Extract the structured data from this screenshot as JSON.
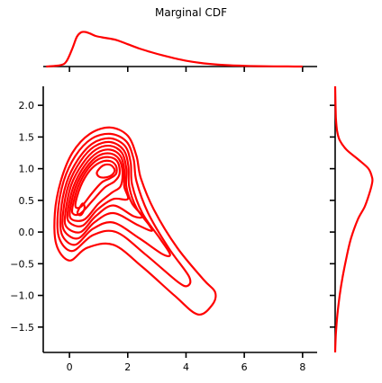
{
  "chart_data": {
    "type": "contour",
    "title": "Marginal CDF",
    "xlabel": "",
    "ylabel": "",
    "grid": false,
    "color": "#ff0000",
    "xlim": [
      -0.9,
      8.5
    ],
    "ylim": [
      -1.9,
      2.3
    ],
    "xticks": [
      0,
      2,
      4,
      6,
      8
    ],
    "xtick_labels": [
      "0",
      "2",
      "4",
      "6",
      "8"
    ],
    "yticks": [
      -1.5,
      -1.0,
      -0.5,
      0.0,
      0.5,
      1.0,
      1.5,
      2.0
    ],
    "ytick_labels": [
      "−1.5",
      "−1.0",
      "−0.5",
      "0.0",
      "0.5",
      "1.0",
      "1.5",
      "2.0"
    ],
    "joint_kde": {
      "center_x": 1.4,
      "center_y": 0.85,
      "levels": [
        [
          [
            -0.5,
            0.3
          ],
          [
            -0.3,
            0.8
          ],
          [
            0.1,
            1.25
          ],
          [
            0.7,
            1.55
          ],
          [
            1.4,
            1.65
          ],
          [
            2.0,
            1.52
          ],
          [
            2.3,
            1.2
          ],
          [
            2.45,
            0.85
          ],
          [
            2.9,
            0.35
          ],
          [
            3.7,
            -0.25
          ],
          [
            4.6,
            -0.75
          ],
          [
            5.0,
            -0.95
          ],
          [
            4.9,
            -1.15
          ],
          [
            4.4,
            -1.3
          ],
          [
            3.6,
            -1.0
          ],
          [
            2.5,
            -0.55
          ],
          [
            1.5,
            -0.2
          ],
          [
            0.6,
            -0.25
          ],
          [
            0.0,
            -0.45
          ],
          [
            -0.45,
            -0.2
          ]
        ],
        [
          [
            -0.4,
            0.3
          ],
          [
            -0.2,
            0.8
          ],
          [
            0.2,
            1.2
          ],
          [
            0.75,
            1.47
          ],
          [
            1.4,
            1.55
          ],
          [
            1.95,
            1.43
          ],
          [
            2.2,
            1.15
          ],
          [
            2.3,
            0.8
          ],
          [
            2.7,
            0.3
          ],
          [
            3.4,
            -0.25
          ],
          [
            4.1,
            -0.7
          ],
          [
            4.05,
            -0.85
          ],
          [
            3.7,
            -0.78
          ],
          [
            2.6,
            -0.35
          ],
          [
            1.6,
            0.0
          ],
          [
            0.8,
            -0.05
          ],
          [
            0.1,
            -0.3
          ],
          [
            -0.35,
            -0.1
          ]
        ],
        [
          [
            -0.3,
            0.3
          ],
          [
            -0.1,
            0.78
          ],
          [
            0.3,
            1.15
          ],
          [
            0.8,
            1.4
          ],
          [
            1.4,
            1.48
          ],
          [
            1.9,
            1.36
          ],
          [
            2.1,
            1.1
          ],
          [
            2.15,
            0.75
          ],
          [
            2.5,
            0.3
          ],
          [
            3.1,
            -0.1
          ],
          [
            3.45,
            -0.35
          ],
          [
            3.2,
            -0.35
          ],
          [
            2.4,
            -0.1
          ],
          [
            1.5,
            0.15
          ],
          [
            0.8,
            0.05
          ],
          [
            0.2,
            -0.2
          ],
          [
            -0.25,
            -0.05
          ]
        ],
        [
          [
            -0.22,
            0.3
          ],
          [
            -0.02,
            0.76
          ],
          [
            0.38,
            1.12
          ],
          [
            0.85,
            1.35
          ],
          [
            1.4,
            1.42
          ],
          [
            1.85,
            1.3
          ],
          [
            2.02,
            1.05
          ],
          [
            2.05,
            0.72
          ],
          [
            2.3,
            0.38
          ],
          [
            2.75,
            0.1
          ],
          [
            2.8,
            0.02
          ],
          [
            2.3,
            0.12
          ],
          [
            1.5,
            0.3
          ],
          [
            0.85,
            0.15
          ],
          [
            0.3,
            -0.1
          ],
          [
            -0.18,
            0.02
          ]
        ],
        [
          [
            -0.14,
            0.3
          ],
          [
            0.06,
            0.74
          ],
          [
            0.45,
            1.08
          ],
          [
            0.9,
            1.3
          ],
          [
            1.4,
            1.36
          ],
          [
            1.8,
            1.25
          ],
          [
            1.95,
            1.0
          ],
          [
            1.95,
            0.72
          ],
          [
            2.15,
            0.45
          ],
          [
            2.5,
            0.25
          ],
          [
            2.2,
            0.25
          ],
          [
            1.5,
            0.42
          ],
          [
            0.9,
            0.25
          ],
          [
            0.38,
            0.0
          ],
          [
            -0.1,
            0.08
          ]
        ],
        [
          [
            -0.06,
            0.32
          ],
          [
            0.14,
            0.72
          ],
          [
            0.52,
            1.05
          ],
          [
            0.95,
            1.25
          ],
          [
            1.4,
            1.3
          ],
          [
            1.75,
            1.2
          ],
          [
            1.88,
            0.98
          ],
          [
            1.88,
            0.72
          ],
          [
            2.0,
            0.52
          ],
          [
            1.5,
            0.52
          ],
          [
            0.95,
            0.35
          ],
          [
            0.45,
            0.1
          ],
          [
            0.0,
            0.15
          ]
        ],
        [
          [
            0.02,
            0.35
          ],
          [
            0.22,
            0.72
          ],
          [
            0.58,
            1.02
          ],
          [
            0.98,
            1.2
          ],
          [
            1.4,
            1.24
          ],
          [
            1.7,
            1.15
          ],
          [
            1.82,
            0.95
          ],
          [
            1.75,
            0.72
          ],
          [
            1.45,
            0.62
          ],
          [
            1.0,
            0.45
          ],
          [
            0.52,
            0.2
          ],
          [
            0.08,
            0.2
          ]
        ],
        [
          [
            0.1,
            0.38
          ],
          [
            0.3,
            0.72
          ],
          [
            0.64,
            1.0
          ],
          [
            1.0,
            1.15
          ],
          [
            1.4,
            1.18
          ],
          [
            1.66,
            1.1
          ],
          [
            1.72,
            0.92
          ],
          [
            1.55,
            0.8
          ],
          [
            1.2,
            0.7
          ],
          [
            0.8,
            0.5
          ],
          [
            0.4,
            0.3
          ],
          [
            0.15,
            0.28
          ]
        ],
        [
          [
            0.2,
            0.42
          ],
          [
            0.38,
            0.72
          ],
          [
            0.7,
            0.97
          ],
          [
            1.05,
            1.1
          ],
          [
            1.4,
            1.12
          ],
          [
            1.6,
            1.04
          ],
          [
            1.6,
            0.92
          ],
          [
            1.4,
            0.85
          ],
          [
            1.1,
            0.78
          ],
          [
            0.75,
            0.6
          ],
          [
            0.4,
            0.4
          ]
        ],
        [
          [
            0.95,
            0.95
          ],
          [
            1.15,
            1.05
          ],
          [
            1.4,
            1.06
          ],
          [
            1.55,
            0.98
          ],
          [
            1.45,
            0.9
          ],
          [
            1.2,
            0.86
          ],
          [
            1.0,
            0.88
          ]
        ],
        [
          [
            0.28,
            0.32
          ],
          [
            0.45,
            0.45
          ],
          [
            0.52,
            0.38
          ],
          [
            0.42,
            0.28
          ],
          [
            0.32,
            0.27
          ]
        ]
      ]
    },
    "x_marginal": {
      "x": [
        -0.8,
        -0.3,
        -0.1,
        0.1,
        0.25,
        0.4,
        0.55,
        0.7,
        0.9,
        1.2,
        1.6,
        2.0,
        2.4,
        2.8,
        3.2,
        3.6,
        4.0,
        4.5,
        5.0,
        5.5,
        6.0,
        6.5,
        7.0,
        7.5,
        8.0
      ],
      "density": [
        0.0,
        0.04,
        0.15,
        0.5,
        0.82,
        0.95,
        0.96,
        0.92,
        0.85,
        0.8,
        0.74,
        0.62,
        0.5,
        0.4,
        0.31,
        0.23,
        0.16,
        0.1,
        0.06,
        0.035,
        0.02,
        0.01,
        0.005,
        0.002,
        0.0
      ]
    },
    "y_marginal": {
      "y": [
        -1.9,
        -1.6,
        -1.3,
        -1.0,
        -0.7,
        -0.4,
        -0.1,
        0.2,
        0.4,
        0.6,
        0.75,
        0.85,
        1.0,
        1.15,
        1.3,
        1.45,
        1.6,
        1.8,
        2.0,
        2.3
      ],
      "density": [
        0.0,
        0.02,
        0.06,
        0.12,
        0.2,
        0.3,
        0.42,
        0.6,
        0.78,
        0.9,
        0.97,
        0.98,
        0.88,
        0.6,
        0.3,
        0.12,
        0.05,
        0.02,
        0.01,
        0.0
      ]
    }
  }
}
